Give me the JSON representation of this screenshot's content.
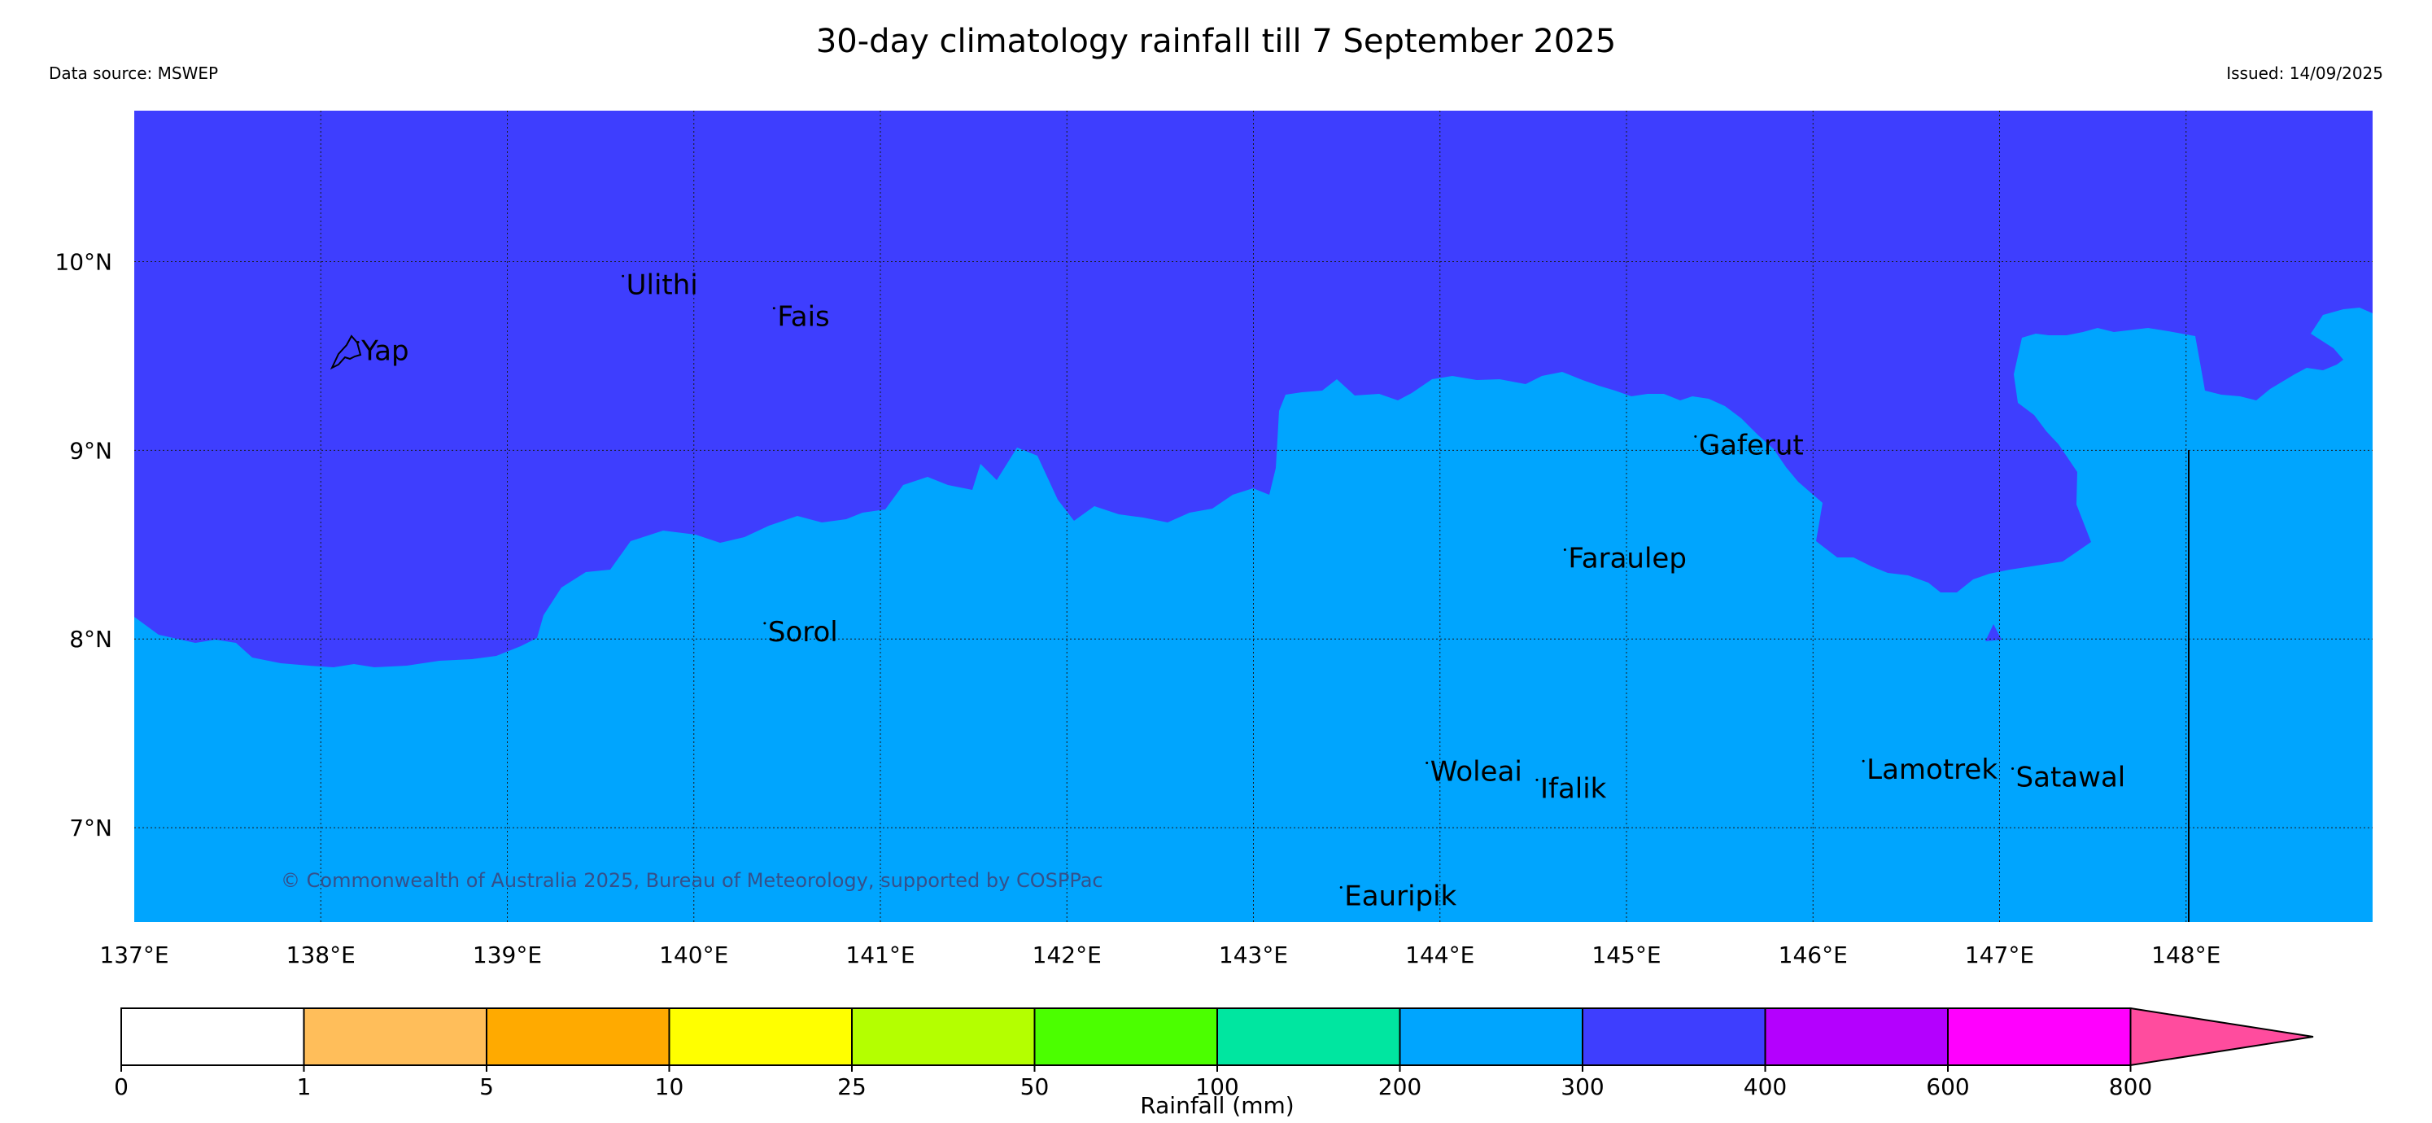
{
  "title": "30-day climatology rainfall till 7 September 2025",
  "data_source": "Data source: MSWEP",
  "issued": "Issued: 14/09/2025",
  "copyright": "© Commonwealth of Australia 2025, Bureau of Meteorology, supported by COSPPac",
  "map": {
    "lon_range": [
      137.0,
      149.0
    ],
    "lat_range": [
      6.5,
      10.8
    ],
    "lon_ticks": [
      "137°E",
      "138°E",
      "139°E",
      "140°E",
      "141°E",
      "142°E",
      "143°E",
      "144°E",
      "145°E",
      "146°E",
      "147°E",
      "148°E"
    ],
    "lat_ticks": [
      "10°N",
      "9°N",
      "8°N",
      "7°N"
    ],
    "grid": "dotted",
    "colors": {
      "band_300_400": "#3e3efe",
      "band_200_300": "#00a5fe"
    },
    "places": [
      {
        "name": "Yap",
        "lon": 138.2,
        "lat": 9.53
      },
      {
        "name": "Ulithi",
        "lon": 139.62,
        "lat": 9.88
      },
      {
        "name": "Fais",
        "lon": 140.43,
        "lat": 9.71
      },
      {
        "name": "Gaferut",
        "lon": 145.37,
        "lat": 9.03
      },
      {
        "name": "Faraulep",
        "lon": 144.67,
        "lat": 8.43
      },
      {
        "name": "Sorol",
        "lon": 140.38,
        "lat": 8.04
      },
      {
        "name": "Woleai",
        "lon": 143.93,
        "lat": 7.3
      },
      {
        "name": "Ifalik",
        "lon": 144.52,
        "lat": 7.21
      },
      {
        "name": "Lamotrek",
        "lon": 146.27,
        "lat": 7.31
      },
      {
        "name": "Satawal",
        "lon": 147.07,
        "lat": 7.27
      },
      {
        "name": "Eauripik",
        "lon": 143.47,
        "lat": 6.64
      }
    ]
  },
  "colorbar": {
    "title": "Rainfall (mm)",
    "ticks": [
      "0",
      "1",
      "5",
      "10",
      "25",
      "50",
      "100",
      "200",
      "300",
      "400",
      "600",
      "800"
    ],
    "colors": [
      "#ffffff",
      "#ffbe5a",
      "#ffaa00",
      "#ffff00",
      "#b4ff00",
      "#4bff00",
      "#00e6a0",
      "#00a5fe",
      "#3e3efe",
      "#b400fe",
      "#ff00fe",
      "#ff4c9e"
    ]
  }
}
